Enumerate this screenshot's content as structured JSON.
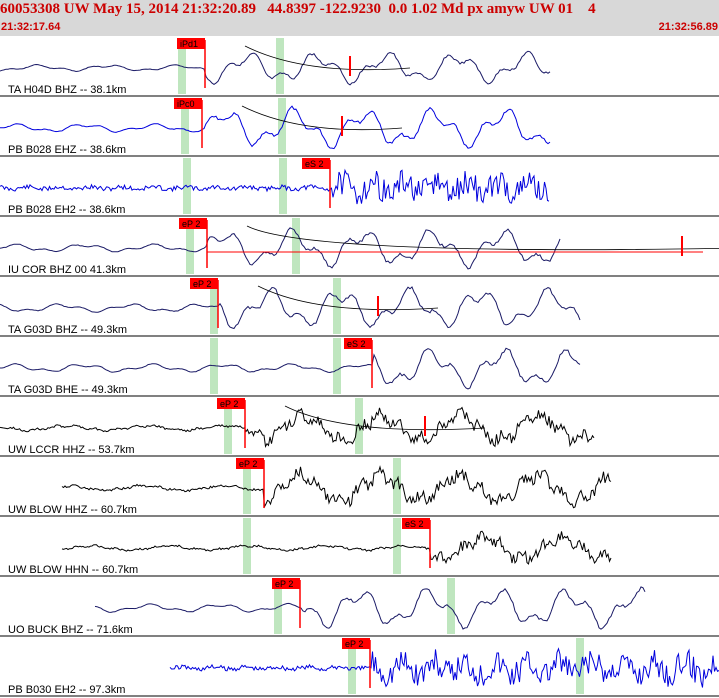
{
  "header": {
    "title": "60053308 UW May 15, 2014 21:32:20.89   44.8397 -122.9230  0.0 1.02 Md px amyw UW 01    4",
    "start_time": "21:32:17.64",
    "end_time": "21:32:56.89"
  },
  "colors": {
    "header_bg": "#d8d8d8",
    "header_text": "#cc0000",
    "pick": "#ff0000",
    "phase_band": "#bfe6bf",
    "trace_black": "#000000",
    "trace_blue": "#0000dd",
    "trace_navy": "#1a1a66"
  },
  "traces": [
    {
      "label": "TA H04D BHZ -- 38.1km",
      "pick": "iPd1",
      "color": "#1a1a66",
      "style": "smooth",
      "amp": 0.7,
      "seed": 3,
      "green": [
        182,
        280
      ],
      "extra_pick": "",
      "curve": true
    },
    {
      "label": "PB B028 EHZ -- 38.6km",
      "pick": "iPc0",
      "color": "#0000dd",
      "style": "smooth",
      "amp": 0.9,
      "seed": 7,
      "green": [
        185,
        282
      ],
      "extra_pick": "",
      "curve": true
    },
    {
      "label": "PB B028 EH2 -- 38.6km",
      "pick": "eS 2",
      "color": "#0000dd",
      "style": "noisy",
      "amp": 0.9,
      "seed": 11,
      "green": [
        187,
        283
      ],
      "extra_pick": "",
      "curve": false
    },
    {
      "label": "IU COR BHZ 00 41.3km",
      "pick": "eP 2",
      "color": "#1a1a66",
      "style": "smooth",
      "amp": 0.85,
      "seed": 13,
      "green": [
        190,
        296
      ],
      "extra_pick": "",
      "curve": true
    },
    {
      "label": "TA G03D BHZ -- 49.3km",
      "pick": "eP 2",
      "color": "#1a1a66",
      "style": "smooth",
      "amp": 0.9,
      "seed": 17,
      "green": [
        214,
        337
      ],
      "extra_pick": "",
      "curve": true
    },
    {
      "label": "TA G03D BHE -- 49.3km",
      "pick": "eS 2",
      "color": "#1a1a66",
      "style": "smooth",
      "amp": 0.9,
      "seed": 19,
      "green": [
        214,
        337
      ],
      "extra_pick": "",
      "curve": false
    },
    {
      "label": "UW LCCR HHZ -- 53.7km",
      "pick": "eP 2",
      "color": "#000000",
      "style": "medium",
      "amp": 0.9,
      "seed": 23,
      "green": [
        228,
        359
      ],
      "extra_pick": "",
      "curve": true
    },
    {
      "label": "UW BLOW HHZ -- 60.7km",
      "pick": "eP 2",
      "color": "#000000",
      "style": "medium",
      "amp": 0.9,
      "seed": 29,
      "green": [
        247,
        397
      ],
      "extra_pick": "",
      "curve": false
    },
    {
      "label": "UW BLOW HHN -- 60.7km",
      "pick": "eS 2",
      "color": "#000000",
      "style": "medium",
      "amp": 0.8,
      "seed": 31,
      "green": [
        247,
        397
      ],
      "extra_pick": "",
      "curve": false
    },
    {
      "label": "UO BUCK BHZ -- 71.6km",
      "pick": "eP 2",
      "color": "#1a1a66",
      "style": "smooth",
      "amp": 0.9,
      "seed": 37,
      "green": [
        278,
        451
      ],
      "extra_pick": "",
      "curve": false
    },
    {
      "label": "PB B030 EH2 -- 97.3km",
      "pick": "eP 2",
      "color": "#0000dd",
      "style": "noisy",
      "amp": 0.95,
      "seed": 41,
      "green": [
        352,
        580
      ],
      "extra_pick": "",
      "curve": false
    }
  ]
}
